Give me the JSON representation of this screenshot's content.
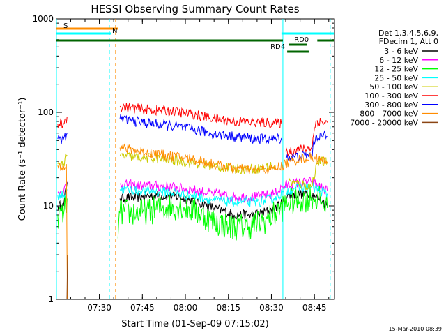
{
  "chart_data": {
    "type": "line",
    "title": "HESSI Observing Summary Count Rates",
    "xlabel": "Start Time (01-Sep-09 07:15:02)",
    "ylabel": "Count Rate (s⁻¹ detector⁻¹)",
    "xlim": [
      "07:15:02",
      "08:52:00"
    ],
    "ylim": [
      1,
      1000
    ],
    "yscale": "log",
    "x_ticks": [
      "07:30",
      "07:45",
      "08:00",
      "08:15",
      "08:30",
      "08:45"
    ],
    "y_ticks": [
      "1",
      "10",
      "100",
      "1000"
    ],
    "legend": {
      "position": "right",
      "header": [
        "Det 1,3,4,5,6,9,",
        "FDecim 1, Att 0"
      ],
      "entries": [
        "3 - 6 keV",
        "6 - 12 keV",
        "12 - 25 keV",
        "25 - 50 keV",
        "50 - 100 keV",
        "100 - 300 keV",
        "300 - 800 keV",
        "800 - 7000 keV",
        "7000 - 20000 keV"
      ]
    },
    "series": [
      {
        "name": "3 - 6 keV",
        "color": "#000000",
        "points": [
          [
            "07:15:02",
            null
          ],
          [
            "07:15:30",
            10
          ],
          [
            "07:17:30",
            10
          ],
          [
            "07:18:45",
            18
          ],
          [
            "07:19:30",
            null
          ],
          [
            "07:36:00",
            null
          ],
          [
            "07:37:10",
            12
          ],
          [
            "07:45:00",
            12.5
          ],
          [
            "07:50:00",
            13
          ],
          [
            "07:58:00",
            12.5
          ],
          [
            "08:04:00",
            11
          ],
          [
            "08:10:00",
            9.5
          ],
          [
            "08:17:00",
            8
          ],
          [
            "08:24:00",
            8
          ],
          [
            "08:30:00",
            9
          ],
          [
            "08:34:00",
            11
          ],
          [
            "08:36:00",
            13
          ],
          [
            "08:40:00",
            13.5
          ],
          [
            "08:45:00",
            13
          ],
          [
            "08:48:00",
            11
          ],
          [
            "08:49:30",
            10
          ]
        ]
      },
      {
        "name": "6 - 12 keV",
        "color": "#ff00ff",
        "points": [
          [
            "07:15:02",
            null
          ],
          [
            "07:15:30",
            14
          ],
          [
            "07:17:30",
            14
          ],
          [
            "07:18:45",
            18
          ],
          [
            "07:19:30",
            null
          ],
          [
            "07:36:00",
            null
          ],
          [
            "07:37:10",
            17
          ],
          [
            "07:45:00",
            16.5
          ],
          [
            "07:55:00",
            16
          ],
          [
            "08:02:00",
            15
          ],
          [
            "08:10:00",
            13.5
          ],
          [
            "08:17:00",
            12.5
          ],
          [
            "08:25:00",
            12.5
          ],
          [
            "08:31:00",
            13.5
          ],
          [
            "08:34:00",
            16
          ],
          [
            "08:38:00",
            17.5
          ],
          [
            "08:44:00",
            18
          ],
          [
            "08:47:00",
            16
          ],
          [
            "08:49:30",
            14.5
          ]
        ]
      },
      {
        "name": "12 - 25 keV",
        "color": "#00ff00",
        "points": [
          [
            "07:15:02",
            null
          ],
          [
            "07:15:30",
            8
          ],
          [
            "07:17:30",
            8
          ],
          [
            "07:18:45",
            12
          ],
          [
            "07:19:30",
            null
          ],
          [
            "07:36:00",
            null
          ],
          [
            "07:36:30",
            4.5
          ],
          [
            "07:37:10",
            8.5
          ],
          [
            "07:45:00",
            8.5
          ],
          [
            "07:52:00",
            9.5
          ],
          [
            "07:58:00",
            10
          ],
          [
            "08:03:00",
            9
          ],
          [
            "08:09:00",
            7
          ],
          [
            "08:15:00",
            6
          ],
          [
            "08:22:00",
            6
          ],
          [
            "08:28:00",
            7
          ],
          [
            "08:33:00",
            9
          ],
          [
            "08:36:00",
            11
          ],
          [
            "08:40:00",
            11.5
          ],
          [
            "08:44:00",
            12.5
          ],
          [
            "08:47:00",
            11.5
          ],
          [
            "08:49:30",
            9.5
          ]
        ]
      },
      {
        "name": "25 - 50 keV",
        "color": "#00ffff",
        "points": [
          [
            "07:15:02",
            null
          ],
          [
            "07:15:30",
            13
          ],
          [
            "07:17:30",
            13
          ],
          [
            "07:18:45",
            15
          ],
          [
            "07:19:30",
            null
          ],
          [
            "07:36:00",
            null
          ],
          [
            "07:37:10",
            15
          ],
          [
            "07:45:00",
            14.5
          ],
          [
            "07:55:00",
            14
          ],
          [
            "08:02:00",
            13
          ],
          [
            "08:10:00",
            11.5
          ],
          [
            "08:17:00",
            11
          ],
          [
            "08:25:00",
            11
          ],
          [
            "08:31:00",
            12
          ],
          [
            "08:34:00",
            14
          ],
          [
            "08:38:00",
            15.5
          ],
          [
            "08:44:00",
            16
          ],
          [
            "08:47:00",
            14.5
          ],
          [
            "08:49:30",
            13.5
          ]
        ]
      },
      {
        "name": "50 - 100 keV",
        "color": "#cccc00",
        "points": [
          [
            "07:15:02",
            null
          ],
          [
            "07:15:30",
            28
          ],
          [
            "07:17:30",
            28
          ],
          [
            "07:18:45",
            35
          ],
          [
            "07:19:30",
            null
          ],
          [
            "07:36:00",
            null
          ],
          [
            "07:37:10",
            34
          ],
          [
            "07:45:00",
            33
          ],
          [
            "07:55:00",
            31
          ],
          [
            "08:02:00",
            29
          ],
          [
            "08:10:00",
            26.5
          ],
          [
            "08:17:00",
            25
          ],
          [
            "08:25:00",
            25
          ],
          [
            "08:31:00",
            27
          ],
          [
            "08:34:00",
            null
          ],
          [
            "08:36:00",
            18
          ],
          [
            "08:40:00",
            17
          ],
          [
            "08:44:00",
            16
          ],
          [
            "08:46:00",
            30
          ],
          [
            "08:49:30",
            29
          ]
        ]
      },
      {
        "name": "100 - 300 keV",
        "color": "#ff0000",
        "points": [
          [
            "07:15:02",
            null
          ],
          [
            "07:15:30",
            75
          ],
          [
            "07:17:30",
            75
          ],
          [
            "07:18:45",
            90
          ],
          [
            "07:19:30",
            null
          ],
          [
            "07:36:00",
            null
          ],
          [
            "07:37:10",
            115
          ],
          [
            "07:45:00",
            108
          ],
          [
            "07:55:00",
            103
          ],
          [
            "08:02:00",
            96
          ],
          [
            "08:10:00",
            86
          ],
          [
            "08:17:00",
            80
          ],
          [
            "08:25:00",
            78
          ],
          [
            "08:31:00",
            77
          ],
          [
            "08:33:30",
            76
          ],
          [
            "08:34:00",
            null
          ],
          [
            "08:35:00",
            38
          ],
          [
            "08:40:00",
            40
          ],
          [
            "08:44:00",
            42
          ],
          [
            "08:45:30",
            80
          ],
          [
            "08:49:30",
            78
          ]
        ]
      },
      {
        "name": "300 - 800 keV",
        "color": "#0000ff",
        "points": [
          [
            "07:15:02",
            null
          ],
          [
            "07:15:30",
            52
          ],
          [
            "07:17:30",
            52
          ],
          [
            "07:18:45",
            60
          ],
          [
            "07:19:30",
            null
          ],
          [
            "07:36:00",
            null
          ],
          [
            "07:37:10",
            85
          ],
          [
            "07:45:00",
            78
          ],
          [
            "07:55:00",
            72
          ],
          [
            "08:02:00",
            66
          ],
          [
            "08:10:00",
            59
          ],
          [
            "08:17:00",
            55
          ],
          [
            "08:25:00",
            52
          ],
          [
            "08:31:00",
            52
          ],
          [
            "08:33:30",
            53
          ],
          [
            "08:34:00",
            null
          ],
          [
            "08:35:00",
            33
          ],
          [
            "08:40:00",
            34
          ],
          [
            "08:44:00",
            35
          ],
          [
            "08:45:30",
            56
          ],
          [
            "08:49:30",
            55
          ]
        ]
      },
      {
        "name": "800 - 7000 keV",
        "color": "#ff8c00",
        "points": [
          [
            "07:15:02",
            null
          ],
          [
            "07:15:30",
            27
          ],
          [
            "07:17:30",
            27
          ],
          [
            "07:18:30",
            28
          ],
          [
            "07:18:50",
            1
          ],
          [
            "07:19:30",
            null
          ],
          [
            "07:36:00",
            null
          ],
          [
            "07:37:10",
            42
          ],
          [
            "07:45:00",
            38
          ],
          [
            "07:55:00",
            34
          ],
          [
            "08:02:00",
            32
          ],
          [
            "08:10:00",
            28
          ],
          [
            "08:17:00",
            25
          ],
          [
            "08:25:00",
            24
          ],
          [
            "08:31:00",
            25
          ],
          [
            "08:36:00",
            29
          ],
          [
            "08:40:00",
            32
          ],
          [
            "08:45:00",
            33
          ],
          [
            "08:47:00",
            31
          ],
          [
            "08:49:30",
            29
          ]
        ]
      },
      {
        "name": "7000 - 20000 keV",
        "color": "#8b4513",
        "points": [
          [
            "07:15:02",
            null
          ],
          [
            "07:18:40",
            1
          ],
          [
            "07:18:55",
            3
          ],
          [
            "07:19:30",
            null
          ]
        ]
      }
    ],
    "top_bars": [
      {
        "label": "S",
        "color": "#ff8c00",
        "start": "07:15:02",
        "end": "07:36:30",
        "row": 1
      },
      {
        "label": "N",
        "color": "#00ffff",
        "start": "07:15:02",
        "end": "07:34:00",
        "row": 2
      },
      {
        "label": "",
        "color": "#00ffff",
        "start": "08:33:30",
        "end": "08:52:00",
        "row": 2
      },
      {
        "label": "RD0",
        "color": "#006400",
        "start": "08:36:00",
        "end": "08:42:30",
        "row": 2.5
      },
      {
        "label": "",
        "color": "#006400",
        "start": "07:15:02",
        "end": "08:34:00",
        "row": 3
      },
      {
        "label": "",
        "color": "#006400",
        "start": "08:46:00",
        "end": "08:52:00",
        "row": 3
      },
      {
        "label": "RD4",
        "color": "#006400",
        "start": "08:35:30",
        "end": "08:43:00",
        "row": 3.5
      }
    ],
    "vlines": [
      {
        "time": "07:15:02",
        "color": "#00ffff",
        "style": "solid"
      },
      {
        "time": "07:33:30",
        "color": "#00ffff",
        "style": "dashed"
      },
      {
        "time": "07:35:40",
        "color": "#ff8c00",
        "style": "dashed"
      },
      {
        "time": "08:34:00",
        "color": "#00ffff",
        "style": "solid"
      },
      {
        "time": "08:50:30",
        "color": "#00ffff",
        "style": "dashed"
      }
    ]
  },
  "footer": {
    "timestamp": "15-Mar-2010 08:39"
  }
}
